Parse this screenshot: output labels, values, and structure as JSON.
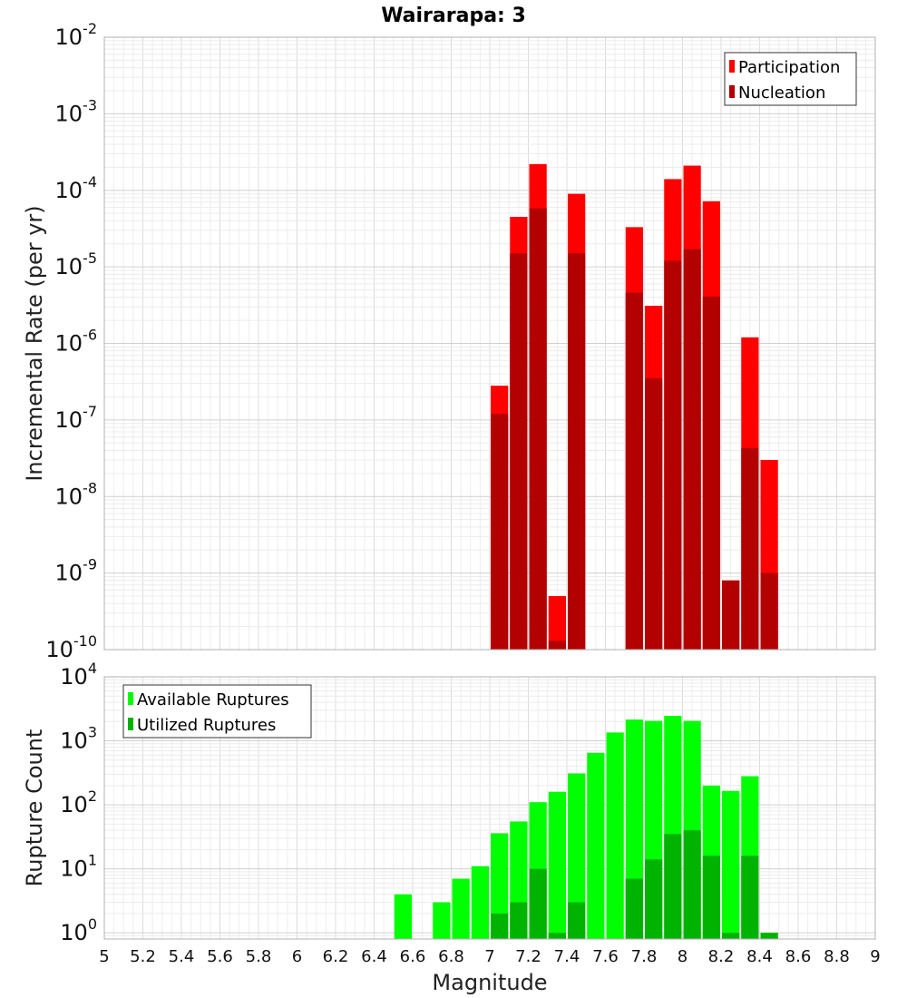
{
  "chart_data": [
    {
      "type": "bar",
      "title": "Wairarapa: 3",
      "xlabel": "",
      "ylabel": "Incremental Rate (per yr)",
      "yscale": "log",
      "ylim": [
        1e-10,
        0.01
      ],
      "xlim": [
        5,
        9
      ],
      "grid": true,
      "legend_position": "top-right",
      "legend": [
        "Participation",
        "Nucleation"
      ],
      "colors": {
        "Participation": "#ff0000",
        "Nucleation": "#b30000"
      },
      "x": [
        7.05,
        7.15,
        7.25,
        7.35,
        7.45,
        7.75,
        7.85,
        7.95,
        8.05,
        8.15,
        8.25,
        8.35,
        8.45
      ],
      "series": [
        {
          "name": "Participation",
          "values": [
            2.8e-07,
            4.5e-05,
            0.00022,
            5e-10,
            9e-05,
            3.3e-05,
            3.1e-06,
            0.00014,
            0.00021,
            7.2e-05,
            8e-10,
            1.2e-06,
            3e-08
          ]
        },
        {
          "name": "Nucleation",
          "values": [
            1.2e-07,
            1.5e-05,
            5.8e-05,
            1.3e-10,
            1.5e-05,
            4.6e-06,
            3.5e-07,
            1.2e-05,
            1.7e-05,
            4.1e-06,
            8e-10,
            4.3e-08,
            1e-09
          ]
        }
      ]
    },
    {
      "type": "bar",
      "title": "",
      "xlabel": "Magnitude",
      "ylabel": "Rupture Count",
      "yscale": "log",
      "ylim": [
        0.8,
        10000
      ],
      "xlim": [
        5,
        9
      ],
      "xticks": [
        "5",
        "5.2",
        "5.4",
        "5.6",
        "5.8",
        "6",
        "6.2",
        "6.4",
        "6.6",
        "6.8",
        "7",
        "7.2",
        "7.4",
        "7.6",
        "7.8",
        "8",
        "8.2",
        "8.4",
        "8.6",
        "8.8",
        "9"
      ],
      "grid": true,
      "legend_position": "top-left",
      "legend": [
        "Available Ruptures",
        "Utilized Ruptures"
      ],
      "colors": {
        "Available Ruptures": "#00ff00",
        "Utilized Ruptures": "#00b300"
      },
      "x": [
        6.55,
        6.75,
        6.85,
        6.95,
        7.05,
        7.15,
        7.25,
        7.35,
        7.45,
        7.55,
        7.65,
        7.75,
        7.85,
        7.95,
        8.05,
        8.15,
        8.25,
        8.35,
        8.45
      ],
      "series": [
        {
          "name": "Available Ruptures",
          "values": [
            4,
            3,
            7,
            11,
            36,
            55,
            110,
            160,
            310,
            650,
            1350,
            2150,
            2050,
            2450,
            2050,
            200,
            165,
            280,
            1
          ]
        },
        {
          "name": "Utilized Ruptures",
          "values": [
            null,
            null,
            null,
            null,
            2,
            3,
            10,
            1,
            3,
            null,
            null,
            7,
            14,
            35,
            40,
            16,
            1,
            16,
            1
          ]
        }
      ]
    }
  ]
}
